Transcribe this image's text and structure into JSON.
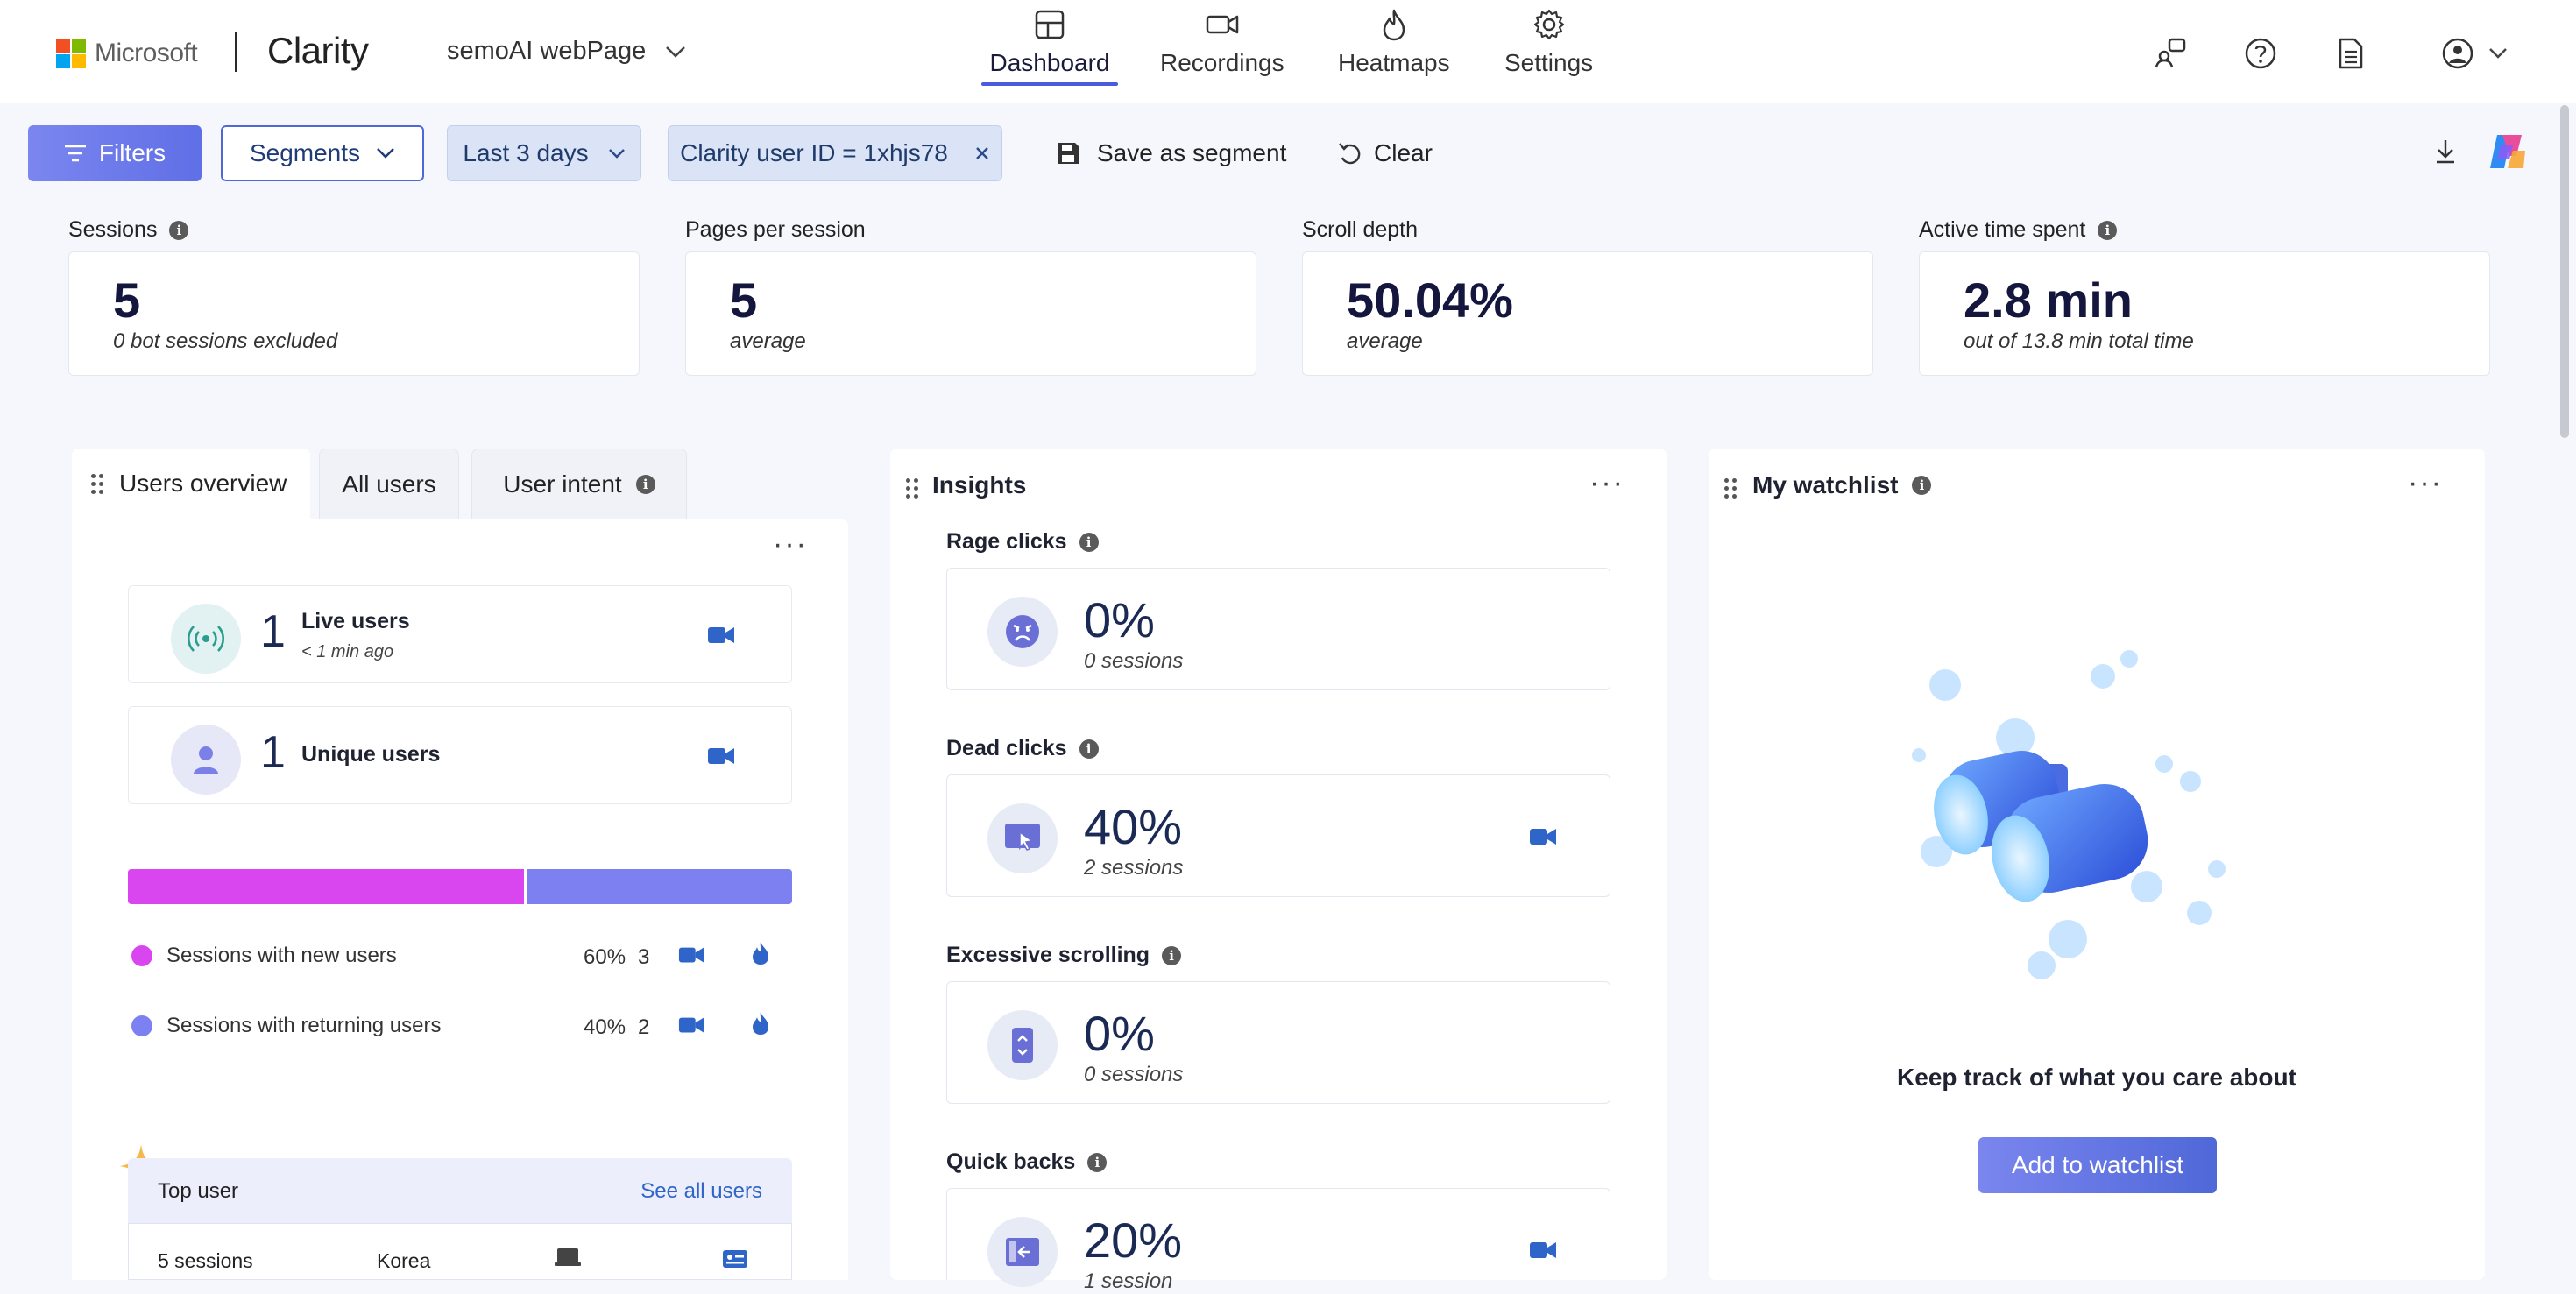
{
  "header": {
    "brand": "Microsoft",
    "product": "Clarity",
    "project": "semoAI webPage",
    "nav": [
      {
        "label": "Dashboard",
        "icon": "dashboard-icon",
        "active": true
      },
      {
        "label": "Recordings",
        "icon": "video-camera-icon",
        "active": false
      },
      {
        "label": "Heatmaps",
        "icon": "flame-icon",
        "active": false
      },
      {
        "label": "Settings",
        "icon": "gear-icon",
        "active": false
      }
    ]
  },
  "toolbar": {
    "filters": "Filters",
    "segments": "Segments",
    "date_range": "Last 3 days",
    "user_filter": "Clarity user ID = 1xhjs78",
    "save_segment": "Save as segment",
    "clear": "Clear"
  },
  "metrics": [
    {
      "label": "Sessions",
      "value": "5",
      "sub": "0 bot sessions excluded",
      "info": true
    },
    {
      "label": "Pages per session",
      "value": "5",
      "sub": "average",
      "info": false
    },
    {
      "label": "Scroll depth",
      "value": "50.04%",
      "sub": "average",
      "info": false
    },
    {
      "label": "Active time spent",
      "value": "2.8 min",
      "sub": "out of 13.8 min total time",
      "info": true
    }
  ],
  "users_panel": {
    "tabs": [
      "Users overview",
      "All users",
      "User intent"
    ],
    "live_users": {
      "count": "1",
      "label": "Live users",
      "sub": "< 1 min ago"
    },
    "unique_users": {
      "count": "1",
      "label": "Unique users"
    },
    "split": {
      "new_fraction": 0.6,
      "new_color": "#d946ef",
      "returning_color": "#7c80f0"
    },
    "legend": [
      {
        "label": "Sessions with new users",
        "percent": "60%",
        "count": "3"
      },
      {
        "label": "Sessions with returning users",
        "percent": "40%",
        "count": "2"
      }
    ],
    "top_user": {
      "title": "Top user",
      "link": "See all users",
      "sessions": "5 sessions",
      "country": "Korea"
    }
  },
  "insights": {
    "title": "Insights",
    "items": [
      {
        "label": "Rage clicks",
        "value": "0%",
        "sub": "0 sessions",
        "icon": "angry-face-icon",
        "recording": false
      },
      {
        "label": "Dead clicks",
        "value": "40%",
        "sub": "2 sessions",
        "icon": "dead-click-icon",
        "recording": true
      },
      {
        "label": "Excessive scrolling",
        "value": "0%",
        "sub": "0 sessions",
        "icon": "scroll-icon",
        "recording": false
      },
      {
        "label": "Quick backs",
        "value": "20%",
        "sub": "1 session",
        "icon": "quick-back-icon",
        "recording": true
      }
    ]
  },
  "watchlist": {
    "title": "My watchlist",
    "empty_text": "Keep track of what you care about",
    "button": "Add to watchlist"
  }
}
